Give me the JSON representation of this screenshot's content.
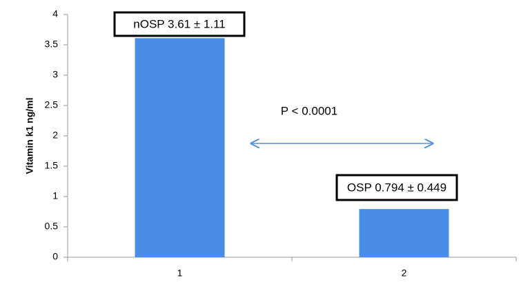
{
  "chart_data": {
    "type": "bar",
    "y_label": "Vitamin k1 ng/ml",
    "categories": [
      "1",
      "2"
    ],
    "values": [
      3.61,
      0.794
    ],
    "color": "#4a8de6",
    "ylim": [
      0,
      4
    ],
    "yticks": [
      0,
      0.5,
      1,
      1.5,
      2,
      2.5,
      3,
      3.5,
      4
    ],
    "annotations": [
      "nOSP 3.61 ± 1.11",
      "OSP 0.794 ± 0.449",
      "P < 0.0001"
    ]
  }
}
